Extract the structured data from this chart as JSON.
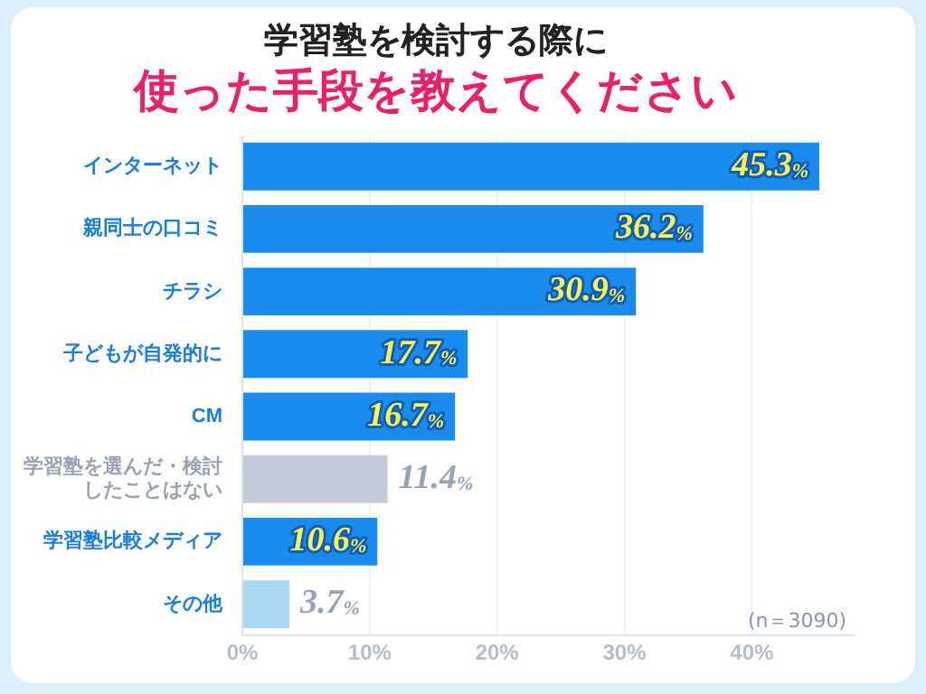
{
  "chart_data": {
    "type": "bar",
    "orientation": "horizontal",
    "title": "学習塾を検討する際に",
    "subtitle": "使った手段を教えてください",
    "categories": [
      "インターネット",
      "親同士の口コミ",
      "チラシ",
      "子どもが自発的に",
      "CM",
      "学習塾を選んだ・検討したことはない",
      "学習塾比較メディア",
      "その他"
    ],
    "values": [
      45.3,
      36.2,
      30.9,
      17.7,
      16.7,
      11.4,
      10.6,
      3.7
    ],
    "colors": [
      "#1a8cf0",
      "#1a8cf0",
      "#1a8cf0",
      "#1a8cf0",
      "#1a8cf0",
      "#c3cad8",
      "#1a8cf0",
      "#a9d8f2"
    ],
    "value_labels": [
      "45.3%",
      "36.2%",
      "30.9%",
      "17.7%",
      "16.7%",
      "11.4%",
      "10.6%",
      "3.7%"
    ],
    "xlim": [
      0,
      48
    ],
    "xticks": [
      {
        "value": 0,
        "label": "0%"
      },
      {
        "value": 10,
        "label": "10%"
      },
      {
        "value": 20,
        "label": "20%"
      },
      {
        "value": 30,
        "label": "30%"
      },
      {
        "value": 40,
        "label": "40%"
      }
    ],
    "grid": "x",
    "annotations": [
      "(n＝3090)"
    ]
  }
}
